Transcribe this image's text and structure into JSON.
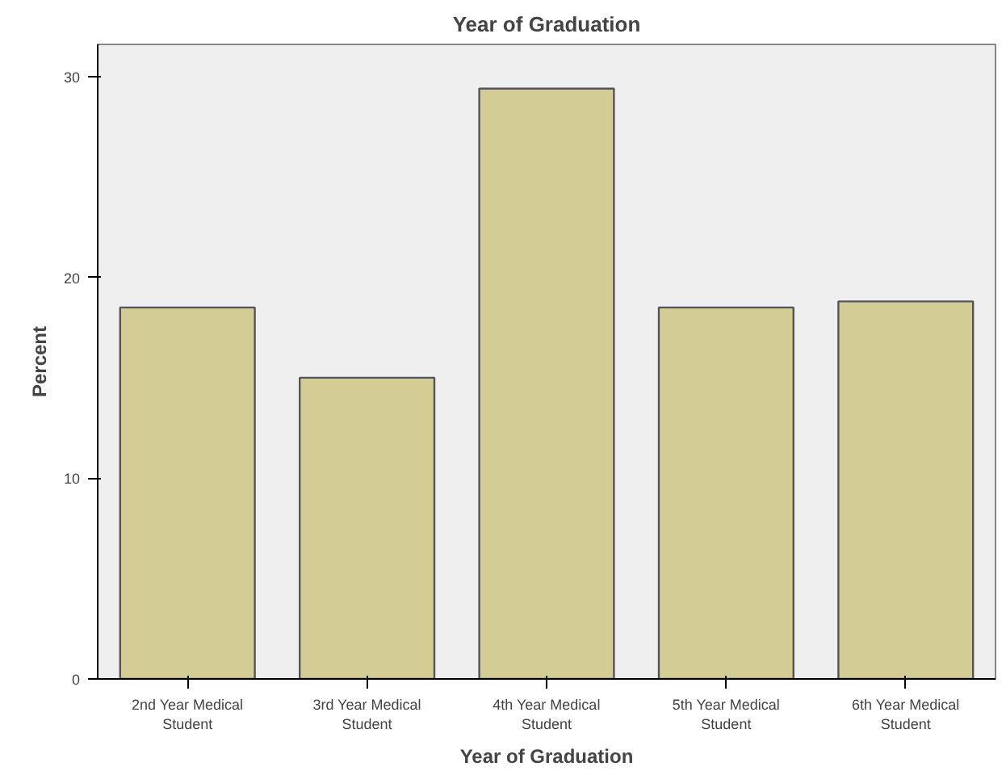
{
  "chart_data": {
    "type": "bar",
    "title": "Year of Graduation",
    "xlabel": "Year of Graduation",
    "ylabel": "Percent",
    "categories": [
      "2nd Year Medical\nStudent",
      "3rd Year Medical\nStudent",
      "4th Year Medical\nStudent",
      "5th Year Medical\nStudent",
      "6th Year Medical\nStudent"
    ],
    "values": [
      18.5,
      15.0,
      29.4,
      18.5,
      18.8
    ],
    "color": "#d3cd95",
    "ylim": [
      0,
      31.6
    ],
    "yticks": [
      0,
      10,
      20,
      30
    ],
    "grid": false
  }
}
